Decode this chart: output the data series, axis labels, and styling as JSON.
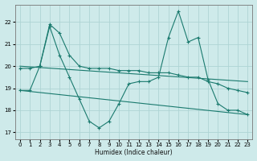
{
  "bg_color": "#ceeaea",
  "grid_color": "#aed4d4",
  "line_color": "#1a7a6e",
  "xlabel": "Humidex (Indice chaleur)",
  "xlim": [
    -0.5,
    23.5
  ],
  "ylim": [
    16.7,
    22.8
  ],
  "yticks": [
    17,
    18,
    19,
    20,
    21,
    22
  ],
  "xticks": [
    0,
    1,
    2,
    3,
    4,
    5,
    6,
    7,
    8,
    9,
    10,
    11,
    12,
    13,
    14,
    15,
    16,
    17,
    18,
    19,
    20,
    21,
    22,
    23
  ],
  "lines": [
    {
      "x": [
        0,
        1,
        2,
        3,
        4,
        5,
        6,
        7,
        8,
        9,
        10,
        11,
        12,
        13,
        14,
        15,
        16,
        17,
        18,
        19,
        20,
        21,
        22,
        23
      ],
      "y": [
        19.9,
        19.9,
        20.0,
        21.9,
        21.5,
        20.5,
        20.0,
        19.9,
        19.9,
        19.9,
        19.8,
        19.8,
        19.8,
        19.7,
        19.7,
        19.7,
        19.6,
        19.5,
        19.5,
        19.3,
        19.2,
        19.0,
        18.9,
        18.8
      ],
      "marker": true
    },
    {
      "x": [
        0,
        1,
        2,
        3,
        4,
        5,
        6,
        7,
        8,
        9,
        10,
        11,
        12,
        13,
        14,
        15,
        16,
        17,
        18,
        19,
        20,
        21,
        22,
        23
      ],
      "y": [
        18.9,
        18.9,
        20.0,
        21.8,
        20.5,
        19.5,
        18.5,
        17.5,
        17.2,
        17.5,
        18.3,
        19.2,
        19.3,
        19.3,
        19.5,
        21.3,
        22.5,
        21.1,
        21.3,
        19.4,
        18.3,
        18.0,
        18.0,
        17.8
      ],
      "marker": true
    },
    {
      "x": [
        0,
        23
      ],
      "y": [
        20.0,
        19.3
      ],
      "marker": false
    },
    {
      "x": [
        0,
        23
      ],
      "y": [
        18.9,
        17.8
      ],
      "marker": false
    }
  ]
}
